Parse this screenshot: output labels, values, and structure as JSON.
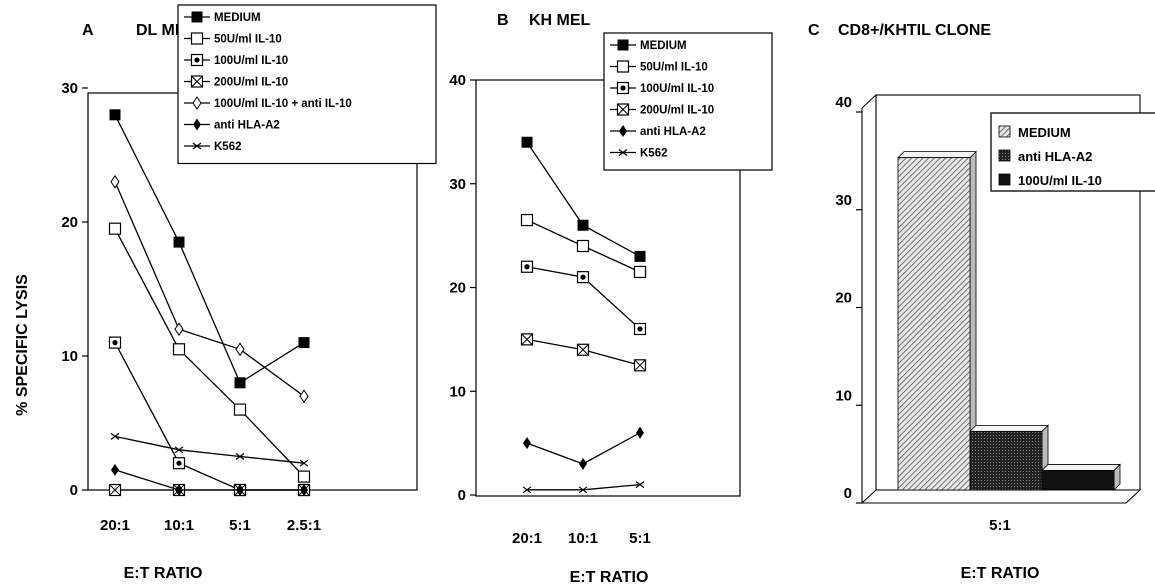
{
  "ylabel": "% SPECIFIC LYSIS",
  "chart_data": [
    {
      "type": "line",
      "panel": "A",
      "title": "DL MEL",
      "xlabel": "E:T RATIO",
      "categories": [
        "20:1",
        "10:1",
        "5:1",
        "2.5:1"
      ],
      "ylim": [
        0,
        30
      ],
      "yticks": [
        "0",
        "10",
        "20",
        "30"
      ],
      "legend_position": "top-right",
      "series": [
        {
          "name": "MEDIUM",
          "marker": "filled-square",
          "values": [
            28,
            18.5,
            8,
            11
          ]
        },
        {
          "name": "50U/ml IL-10",
          "marker": "open-square",
          "values": [
            19.5,
            10.5,
            6,
            1
          ]
        },
        {
          "name": "100U/ml IL-10",
          "marker": "dot-square",
          "values": [
            11,
            2,
            0,
            0
          ]
        },
        {
          "name": "200U/ml IL-10",
          "marker": "x-square",
          "values": [
            0,
            0,
            0,
            0
          ]
        },
        {
          "name": "100U/ml IL-10 + anti IL-10",
          "marker": "open-diamond",
          "values": [
            23,
            12,
            10.5,
            7
          ]
        },
        {
          "name": "anti HLA-A2",
          "marker": "filled-diamond",
          "values": [
            1.5,
            0,
            0,
            0
          ]
        },
        {
          "name": "K562",
          "marker": "x",
          "values": [
            4,
            3,
            2.5,
            2
          ]
        }
      ]
    },
    {
      "type": "line",
      "panel": "B",
      "title": "KH MEL",
      "xlabel": "E:T RATIO",
      "categories": [
        "20:1",
        "10:1",
        "5:1"
      ],
      "ylim": [
        0,
        40
      ],
      "yticks": [
        "0",
        "10",
        "20",
        "30",
        "40"
      ],
      "legend_position": "top-right",
      "series": [
        {
          "name": "MEDIUM",
          "marker": "filled-square",
          "values": [
            34,
            26,
            23
          ]
        },
        {
          "name": "50U/ml IL-10",
          "marker": "open-square",
          "values": [
            26.5,
            24,
            21.5
          ]
        },
        {
          "name": "100U/ml IL-10",
          "marker": "dot-square",
          "values": [
            22,
            21,
            16
          ]
        },
        {
          "name": "200U/ml IL-10",
          "marker": "x-square",
          "values": [
            15,
            14,
            12.5
          ]
        },
        {
          "name": "anti HLA-A2",
          "marker": "filled-diamond",
          "values": [
            5,
            3,
            6
          ]
        },
        {
          "name": "K562",
          "marker": "x",
          "values": [
            0.5,
            0.5,
            1
          ]
        }
      ]
    },
    {
      "type": "bar",
      "panel": "C",
      "title": "CD8+/KHTIL CLONE",
      "xlabel": "E:T RATIO",
      "categories": [
        "5:1"
      ],
      "ylim": [
        0,
        40
      ],
      "yticks": [
        "0",
        "10",
        "20",
        "30",
        "40"
      ],
      "legend_position": "top-right",
      "series": [
        {
          "name": "MEDIUM",
          "fill": "hatched",
          "values": [
            34
          ]
        },
        {
          "name": "anti HLA-A2",
          "fill": "stippled",
          "values": [
            6
          ]
        },
        {
          "name": "100U/ml IL-10",
          "fill": "solid",
          "values": [
            2
          ]
        }
      ]
    }
  ]
}
